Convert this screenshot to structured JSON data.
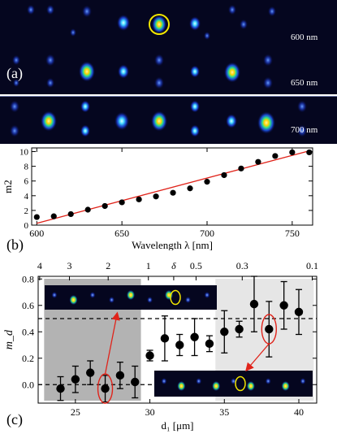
{
  "figure": {
    "panel_a_label": "(a)",
    "panel_b_label": "(b)",
    "panel_c_label": "(c)",
    "strip_labels": [
      "600 nm",
      "650 nm",
      "700 nm"
    ]
  },
  "colors": {
    "background_dark": "#05061f",
    "fit_line": "#e0231a",
    "highlight_circle": "#f2e600",
    "annotation_red": "#e0231a",
    "shade_dark": "#b3b3b3",
    "shade_light": "#e6e6e6"
  },
  "chart_data": [
    {
      "type": "scatter",
      "xlabel": "Wavelength λ [nm]",
      "ylabel": "m2",
      "xlim": [
        597,
        762
      ],
      "ylim": [
        0,
        10.5
      ],
      "xticks": [
        600,
        650,
        700,
        750
      ],
      "yticks": [
        0,
        2,
        4,
        6,
        8,
        10
      ],
      "points": {
        "x": [
          600,
          610,
          620,
          630,
          640,
          650,
          660,
          670,
          680,
          690,
          700,
          710,
          720,
          730,
          740,
          750,
          760
        ],
        "y": [
          1.1,
          1.2,
          1.5,
          2.1,
          2.6,
          3.1,
          3.5,
          3.9,
          4.4,
          5.0,
          5.9,
          6.8,
          7.7,
          8.6,
          9.4,
          9.9,
          9.9
        ]
      },
      "fit_line": {
        "x": [
          600,
          760
        ],
        "y": [
          0.25,
          10.1
        ]
      }
    },
    {
      "type": "scatter",
      "xlabel": "d₁ [μm]",
      "ylabel": "m_d",
      "xlim": [
        22.5,
        41.2
      ],
      "ylim": [
        -0.14,
        0.82
      ],
      "xticks": [
        25,
        30,
        35,
        40
      ],
      "yticks": [
        0.0,
        0.2,
        0.4,
        0.6,
        0.8
      ],
      "ytick_labels": [
        "0.0",
        "0.2",
        "0.4",
        "0.6",
        "0.8"
      ],
      "top_ticks": [
        {
          "x": 22.6,
          "label": "4"
        },
        {
          "x": 24.6,
          "label": "3"
        },
        {
          "x": 27.2,
          "label": "2"
        },
        {
          "x": 29.9,
          "label": "1"
        },
        {
          "x": 31.6,
          "label": "δ"
        },
        {
          "x": 33.1,
          "label": "0.5"
        },
        {
          "x": 36.2,
          "label": "0.3"
        },
        {
          "x": 40.9,
          "label": "0.1"
        }
      ],
      "dashed_levels": [
        0.0,
        0.5
      ],
      "shaded_regions": [
        {
          "x": [
            22.9,
            29.4
          ],
          "tone": "dark"
        },
        {
          "x": [
            34.4,
            41.0
          ],
          "tone": "light"
        }
      ],
      "points": {
        "x": [
          24.0,
          25.0,
          26.0,
          27.0,
          28.0,
          29.0,
          30.0,
          31.0,
          32.0,
          33.0,
          34.0,
          35.0,
          36.0,
          37.0,
          38.0,
          39.0,
          40.0
        ],
        "y": [
          -0.03,
          0.04,
          0.09,
          -0.03,
          0.07,
          0.02,
          0.22,
          0.35,
          0.3,
          0.36,
          0.31,
          0.4,
          0.42,
          0.61,
          0.42,
          0.6,
          0.55
        ],
        "err": [
          0.09,
          0.1,
          0.09,
          0.1,
          0.1,
          0.12,
          0.04,
          0.17,
          0.08,
          0.14,
          0.06,
          0.16,
          0.06,
          0.21,
          0.21,
          0.18,
          0.17
        ]
      },
      "marked_points": [
        27.0,
        38.0
      ]
    }
  ]
}
